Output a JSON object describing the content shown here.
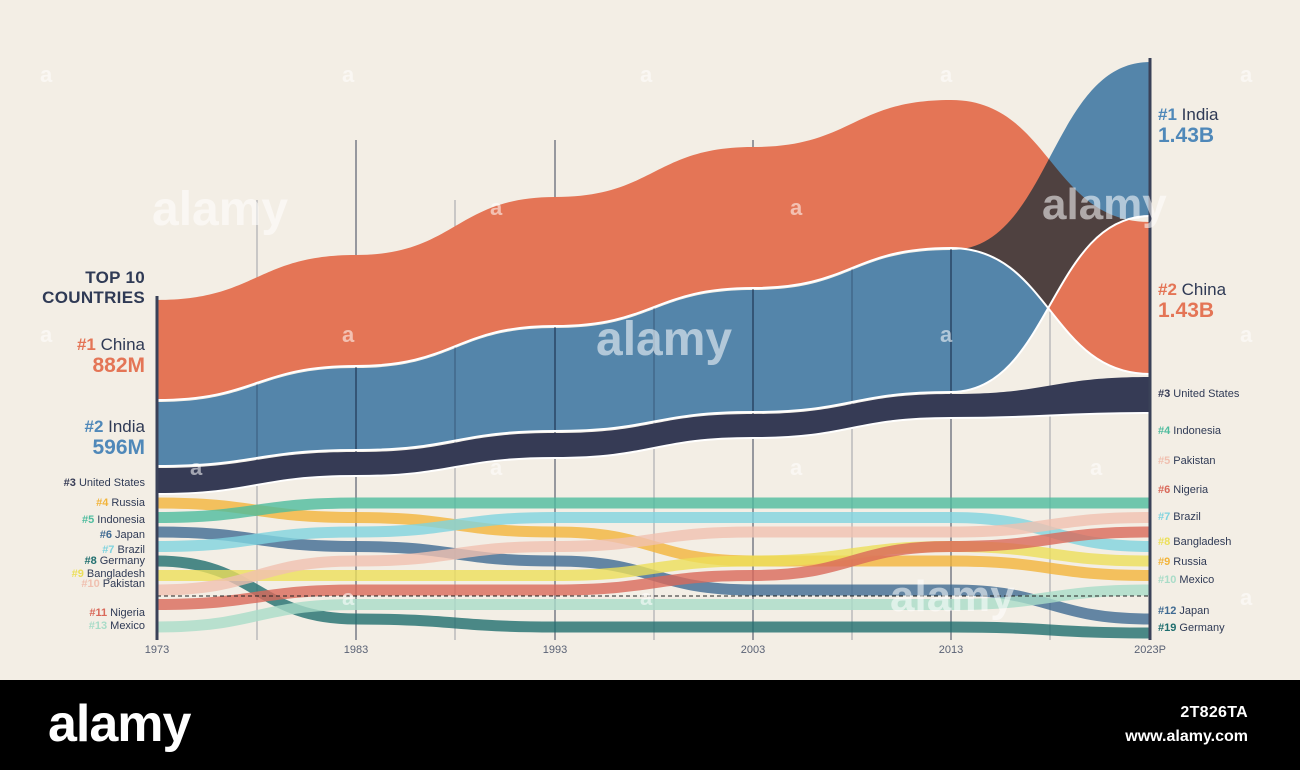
{
  "chart_data": {
    "type": "area",
    "title": "TOP 10 COUNTRIES",
    "x_ticks": [
      "1973",
      "1983",
      "1993",
      "2003",
      "2013",
      "2023P"
    ],
    "x": [
      1973,
      1983,
      1993,
      2003,
      2013,
      2023
    ],
    "population_millions": {
      "China": [
        882,
        1020,
        1180,
        1290,
        1380,
        1430
      ],
      "India": [
        596,
        720,
        900,
        1080,
        1250,
        1430
      ]
    },
    "series": [
      {
        "name": "China",
        "color": "#e47556",
        "ranks": [
          1,
          1,
          1,
          1,
          1,
          2
        ]
      },
      {
        "name": "India",
        "color": "#4f88b9",
        "ranks": [
          2,
          2,
          2,
          2,
          2,
          1
        ]
      },
      {
        "name": "United States",
        "color": "#363b55",
        "ranks": [
          3,
          3,
          3,
          3,
          3,
          3
        ]
      },
      {
        "name": "Russia",
        "color": "#f2b43b",
        "ranks": [
          4,
          5,
          6,
          8,
          8,
          9
        ]
      },
      {
        "name": "Indonesia",
        "color": "#4ebc9e",
        "ranks": [
          5,
          4,
          4,
          4,
          4,
          4
        ]
      },
      {
        "name": "Japan",
        "color": "#3f6a92",
        "ranks": [
          6,
          7,
          8,
          10,
          10,
          12
        ]
      },
      {
        "name": "Brazil",
        "color": "#7fd3de",
        "ranks": [
          7,
          6,
          5,
          5,
          5,
          7
        ]
      },
      {
        "name": "Germany",
        "color": "#1f6e6e",
        "ranks": [
          8,
          12,
          14,
          15,
          16,
          19
        ]
      },
      {
        "name": "Bangladesh",
        "color": "#ecdf5a",
        "ranks": [
          9,
          9,
          9,
          8,
          7,
          8
        ]
      },
      {
        "name": "Pakistan",
        "color": "#f0c0b0",
        "ranks": [
          10,
          8,
          7,
          6,
          6,
          5
        ]
      },
      {
        "name": "Nigeria",
        "color": "#d9695a",
        "ranks": [
          11,
          10,
          10,
          9,
          7,
          6
        ]
      },
      {
        "name": "Mexico",
        "color": "#a9dcc8",
        "ranks": [
          13,
          11,
          11,
          11,
          11,
          10
        ]
      }
    ]
  },
  "left": {
    "title_line1": "TOP 10",
    "title_line2": "COUNTRIES",
    "big": [
      {
        "rank": "#1",
        "name": "China",
        "value": "882M",
        "color": "#e47556"
      },
      {
        "rank": "#2",
        "name": "India",
        "value": "596M",
        "color": "#4f88b9"
      }
    ],
    "small": [
      {
        "rank": "#3",
        "name": "United States",
        "color": "#363b55"
      },
      {
        "rank": "#4",
        "name": "Russia",
        "color": "#f2b43b"
      },
      {
        "rank": "#5",
        "name": "Indonesia",
        "color": "#4ebc9e"
      },
      {
        "rank": "#6",
        "name": "Japan",
        "color": "#3f6a92"
      },
      {
        "rank": "#7",
        "name": "Brazil",
        "color": "#7fd3de"
      },
      {
        "rank": "#8",
        "name": "Germany",
        "color": "#1f6e6e"
      },
      {
        "rank": "#9",
        "name": "Bangladesh",
        "color": "#ecdf5a"
      },
      {
        "rank": "#10",
        "name": "Pakistan",
        "color": "#f0c0b0"
      },
      {
        "rank": "#11",
        "name": "Nigeria",
        "color": "#d9695a"
      },
      {
        "rank": "#13",
        "name": "Mexico",
        "color": "#a9dcc8"
      }
    ]
  },
  "right": {
    "big": [
      {
        "rank": "#1",
        "name": "India",
        "value": "1.43B",
        "color": "#4f88b9"
      },
      {
        "rank": "#2",
        "name": "China",
        "value": "1.43B",
        "color": "#e47556"
      }
    ],
    "small": [
      {
        "rank": "#3",
        "name": "United States",
        "color": "#363b55"
      },
      {
        "rank": "#4",
        "name": "Indonesia",
        "color": "#4ebc9e"
      },
      {
        "rank": "#5",
        "name": "Pakistan",
        "color": "#f0c0b0"
      },
      {
        "rank": "#6",
        "name": "Nigeria",
        "color": "#d9695a"
      },
      {
        "rank": "#7",
        "name": "Brazil",
        "color": "#7fd3de"
      },
      {
        "rank": "#8",
        "name": "Bangladesh",
        "color": "#ecdf5a"
      },
      {
        "rank": "#9",
        "name": "Russia",
        "color": "#f2b43b"
      },
      {
        "rank": "#10",
        "name": "Mexico",
        "color": "#a9dcc8"
      },
      {
        "rank": "#12",
        "name": "Japan",
        "color": "#3f6a92"
      },
      {
        "rank": "#19",
        "name": "Germany",
        "color": "#1f6e6e"
      }
    ]
  },
  "watermark": {
    "text": "alamy",
    "letter": "a"
  },
  "footer": {
    "logo": "alamy",
    "image_id": "2T826TA",
    "url": "www.alamy.com"
  }
}
